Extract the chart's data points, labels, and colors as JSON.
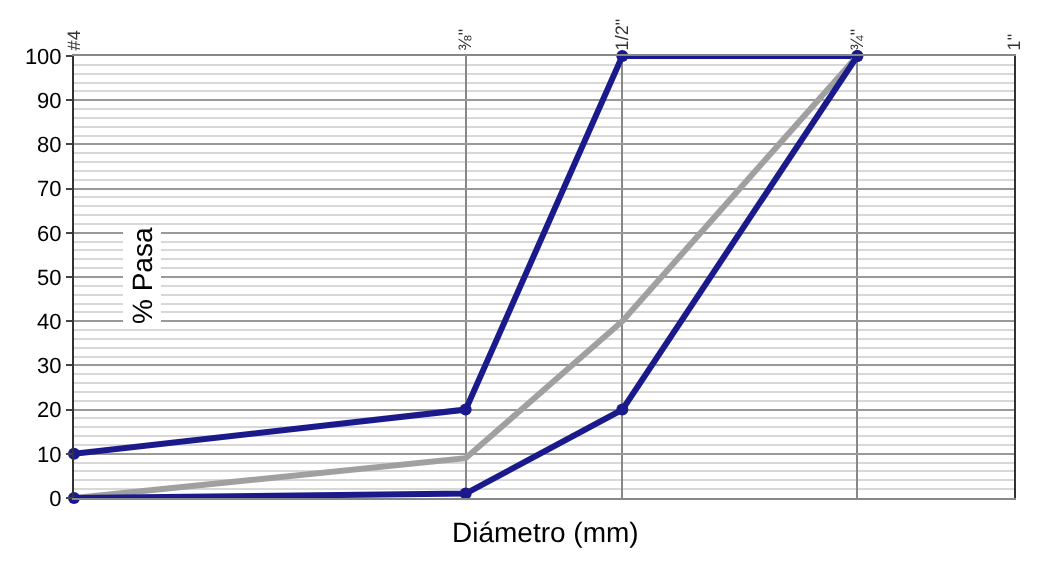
{
  "chart_data": {
    "type": "line",
    "xlabel": "Diámetro (mm)",
    "ylabel": "% Pasa",
    "grid": true,
    "categories": [
      "#4",
      null,
      null,
      null,
      null,
      "⅜\"",
      null,
      "1/2\"",
      null,
      null,
      "¾\"",
      null,
      "1\""
    ],
    "ylim": [
      0,
      100
    ],
    "yticks": [
      0,
      10,
      20,
      30,
      40,
      50,
      60,
      70,
      80,
      90,
      100
    ],
    "series": [
      {
        "color": "#1a1a8c",
        "marker": "circle",
        "x": [
          "#4",
          "⅜\"",
          "1/2\"",
          "¾\""
        ],
        "values": [
          10,
          20,
          100,
          100
        ]
      },
      {
        "color": "#a0a0a0",
        "marker": "none",
        "x": [
          "#4",
          "⅜\"",
          "1/2\"",
          "¾\""
        ],
        "values": [
          0,
          9,
          40,
          100
        ]
      },
      {
        "color": "#1a1a8c",
        "marker": "circle",
        "x": [
          "#4",
          "⅜\"",
          "1/2\"",
          "¾\""
        ],
        "values": [
          0,
          1,
          20,
          100
        ]
      }
    ]
  }
}
